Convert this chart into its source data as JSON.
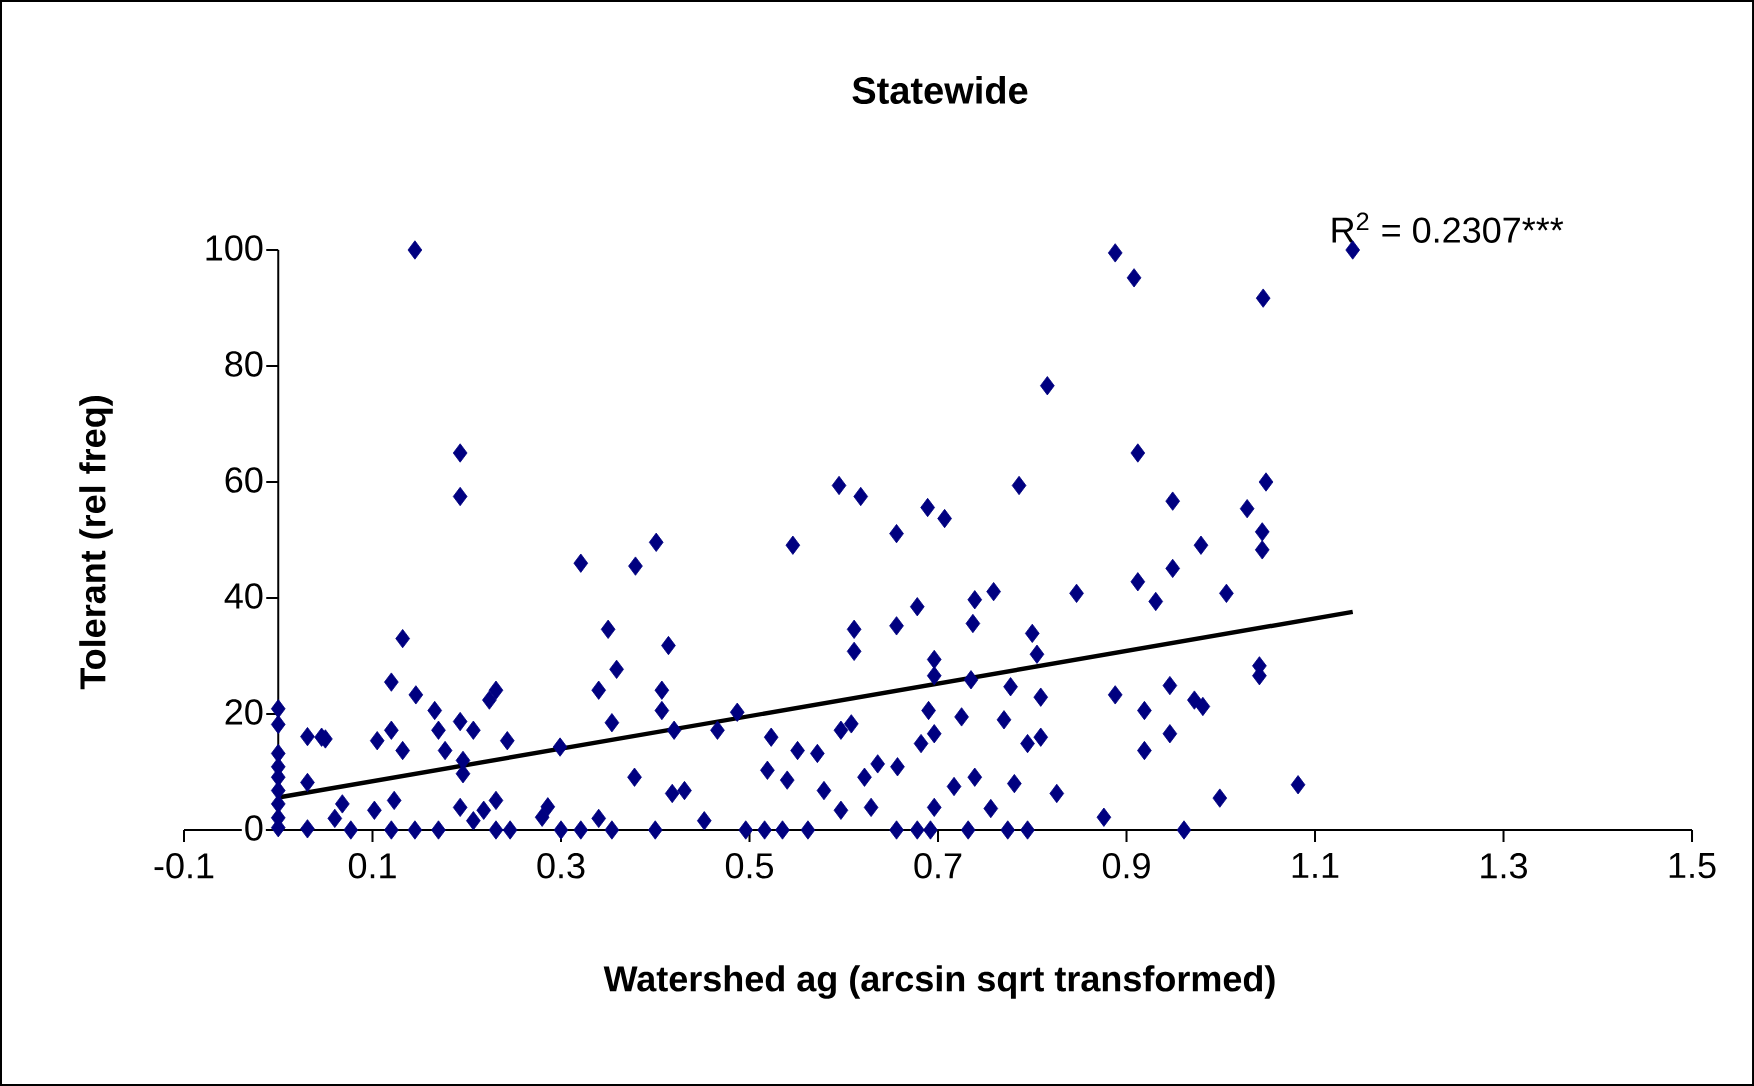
{
  "chart_data": {
    "type": "scatter",
    "title": "Statewide",
    "xlabel": "Watershed ag (arcsin sqrt transformed)",
    "ylabel": "Tolerant (rel freq)",
    "annotations": [
      "R$^{2}$ = 0.2307***"
    ],
    "xlim": [
      -0.1,
      1.5
    ],
    "ylim": [
      0,
      100
    ],
    "xticks": [
      -0.1,
      0.1,
      0.3,
      0.5,
      0.7,
      0.9,
      1.1,
      1.3,
      1.5
    ],
    "yticks": [
      0,
      20,
      40,
      60,
      80,
      100
    ],
    "grid": false,
    "series": [
      {
        "type": "scatter",
        "color": "#000080",
        "marker": "diamond",
        "x": [
          0,
          0,
          0,
          0,
          0,
          0,
          0,
          0,
          0,
          0.031,
          0.031,
          0.031,
          0.046,
          0.05,
          0.06,
          0.068,
          0.077,
          0.102,
          0.105,
          0.12,
          0.12,
          0.123,
          0.12,
          0.132,
          0.132,
          0.145,
          0.145,
          0.146,
          0.166,
          0.17,
          0.17,
          0.177,
          0.193,
          0.193,
          0.193,
          0.196,
          0.196,
          0.193,
          0.207,
          0.207,
          0.218,
          0.224,
          0.231,
          0.231,
          0.231,
          0.243,
          0.246,
          0.28,
          0.286,
          0.299,
          0.3,
          0.321,
          0.321,
          0.34,
          0.34,
          0.35,
          0.354,
          0.359,
          0.354,
          0.378,
          0.379,
          0.4,
          0.401,
          0.407,
          0.407,
          0.414,
          0.418,
          0.42,
          0.431,
          0.452,
          0.466,
          0.487,
          0.496,
          0.516,
          0.523,
          0.519,
          0.535,
          0.546,
          0.551,
          0.54,
          0.562,
          0.572,
          0.579,
          0.595,
          0.597,
          0.597,
          0.608,
          0.611,
          0.611,
          0.618,
          0.622,
          0.629,
          0.636,
          0.656,
          0.656,
          0.657,
          0.656,
          0.678,
          0.682,
          0.678,
          0.689,
          0.696,
          0.696,
          0.69,
          0.696,
          0.707,
          0.696,
          0.692,
          0.717,
          0.725,
          0.732,
          0.739,
          0.735,
          0.737,
          0.739,
          0.759,
          0.756,
          0.77,
          0.777,
          0.774,
          0.781,
          0.786,
          0.795,
          0.8,
          0.805,
          0.795,
          0.809,
          0.816,
          0.809,
          0.826,
          0.847,
          0.876,
          0.888,
          0.888,
          0.908,
          0.912,
          0.912,
          0.919,
          0.919,
          0.931,
          0.946,
          0.946,
          0.949,
          0.949,
          0.961,
          0.972,
          0.979,
          1.14,
          1.045,
          1.048,
          1.028,
          1.044,
          1.044,
          1.006,
          1.041,
          1.041,
          0.981,
          0.999,
          1.082
        ],
        "values": [
          20.9,
          18.2,
          13.2,
          10.9,
          9.1,
          6.8,
          4.5,
          2.1,
          0.4,
          16.1,
          8.2,
          0.2,
          16,
          15.7,
          2,
          4.5,
          0,
          3.4,
          15.4,
          17.2,
          25.5,
          5.1,
          0,
          13.7,
          33,
          100,
          0,
          23.3,
          20.6,
          0,
          17.2,
          13.7,
          65,
          57.5,
          18.7,
          9.7,
          12,
          3.9,
          17.2,
          1.6,
          3.4,
          22.4,
          24.1,
          5.1,
          0,
          15.4,
          0,
          2.2,
          4,
          14.3,
          0,
          46,
          0,
          24.1,
          2,
          34.6,
          18.5,
          27.7,
          0,
          9.1,
          45.5,
          0,
          49.6,
          24.1,
          20.6,
          31.8,
          6.3,
          17.2,
          6.8,
          1.6,
          17.2,
          20.3,
          0,
          0,
          16,
          10.3,
          0,
          49.1,
          13.7,
          8.6,
          0,
          13.2,
          6.8,
          59.4,
          17.2,
          3.4,
          18.3,
          34.6,
          30.8,
          57.5,
          9.1,
          3.9,
          11.4,
          51.1,
          35.2,
          10.9,
          0,
          38.5,
          14.9,
          0,
          55.6,
          29.4,
          26.6,
          20.6,
          16.6,
          53.7,
          3.9,
          0,
          7.5,
          19.5,
          0,
          9.1,
          25.9,
          35.6,
          39.7,
          41.1,
          3.7,
          19,
          24.7,
          0,
          8,
          59.4,
          14.9,
          33.9,
          30.3,
          0,
          22.9,
          76.6,
          16,
          6.3,
          40.8,
          2.2,
          99.5,
          23.3,
          95.2,
          65,
          42.8,
          20.6,
          13.7,
          39.4,
          24.9,
          16.6,
          56.7,
          45.1,
          0,
          22.4,
          49.1,
          100,
          91.7,
          60,
          55.4,
          51.4,
          48.3,
          40.8,
          28.3,
          26.6,
          21.3,
          5.5,
          7.8
        ]
      },
      {
        "type": "line",
        "color": "#000000",
        "marker": "none",
        "x": [
          0,
          1.14
        ],
        "values": [
          5.6,
          37.6
        ]
      }
    ]
  }
}
